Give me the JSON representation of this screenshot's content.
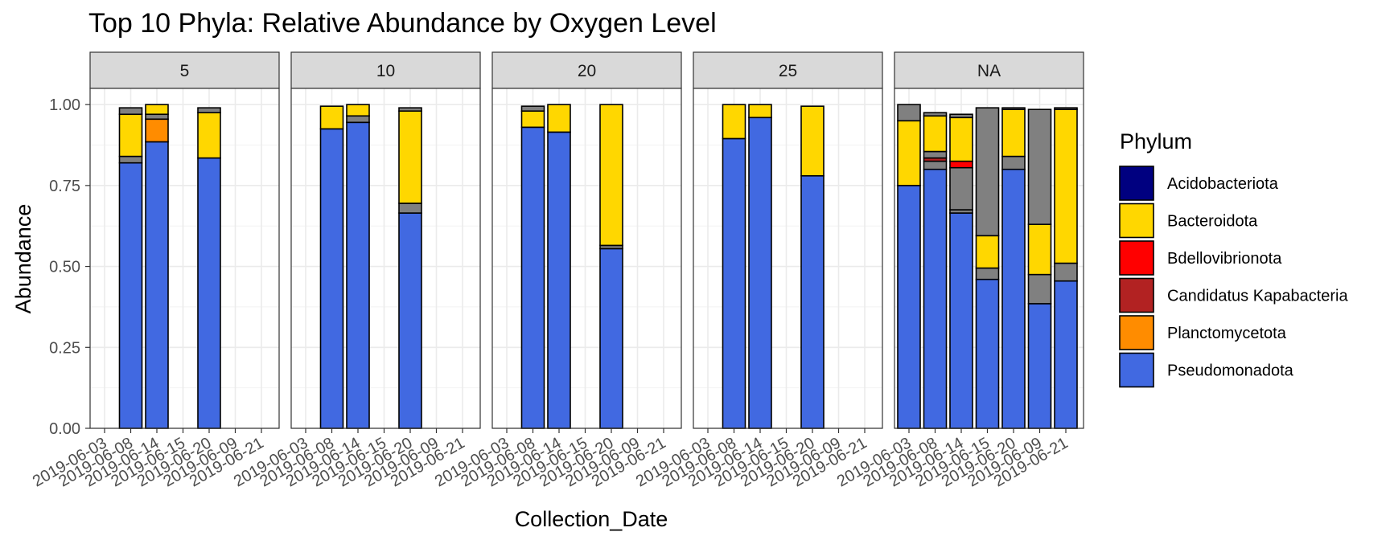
{
  "chart_data": {
    "type": "bar",
    "subtype": "stacked, faceted",
    "title": "Top 10 Phyla: Relative Abundance by Oxygen Level",
    "xlabel": "Collection_Date",
    "ylabel": "Abundance",
    "ylim": [
      0,
      1.05
    ],
    "y_ticks": [
      "0.00",
      "0.25",
      "0.50",
      "0.75",
      "1.00"
    ],
    "y_tick_values": [
      0,
      0.25,
      0.5,
      0.75,
      1.0
    ],
    "x_ticks": [
      "2019-06-03",
      "2019-06-08",
      "2019-06-14",
      "2019-06-15",
      "2019-06-20",
      "2019-06-09",
      "2019-06-21"
    ],
    "grid": true,
    "legend_position": "right",
    "legend_title": "Phylum",
    "legend": [
      {
        "name": "Acidobacteriota",
        "color": "#000080"
      },
      {
        "name": "Bacteroidota",
        "color": "#FFD700"
      },
      {
        "name": "Bdellovibrionota",
        "color": "#FF0000"
      },
      {
        "name": "Candidatus Kapabacteria",
        "color": "#B22222"
      },
      {
        "name": "Planctomycetota",
        "color": "#FF8C00"
      },
      {
        "name": "Pseudomonadota",
        "color": "#4169E1"
      }
    ],
    "other_color": "#808080",
    "panels": [
      {
        "label": "5",
        "bars": [
          {
            "x": "2019-06-08",
            "stack": [
              {
                "phylum": "Pseudomonadota",
                "value": 0.82
              },
              {
                "phylum": "Other",
                "value": 0.02
              },
              {
                "phylum": "Bacteroidota",
                "value": 0.13
              },
              {
                "phylum": "Other",
                "value": 0.02
              }
            ]
          },
          {
            "x": "2019-06-14",
            "stack": [
              {
                "phylum": "Pseudomonadota",
                "value": 0.885
              },
              {
                "phylum": "Planctomycetota",
                "value": 0.07
              },
              {
                "phylum": "Other",
                "value": 0.015
              },
              {
                "phylum": "Bacteroidota",
                "value": 0.03
              }
            ]
          },
          {
            "x": "2019-06-20",
            "stack": [
              {
                "phylum": "Pseudomonadota",
                "value": 0.835
              },
              {
                "phylum": "Bacteroidota",
                "value": 0.14
              },
              {
                "phylum": "Other",
                "value": 0.015
              }
            ]
          }
        ]
      },
      {
        "label": "10",
        "bars": [
          {
            "x": "2019-06-08",
            "stack": [
              {
                "phylum": "Pseudomonadota",
                "value": 0.925
              },
              {
                "phylum": "Bacteroidota",
                "value": 0.07
              }
            ]
          },
          {
            "x": "2019-06-14",
            "stack": [
              {
                "phylum": "Pseudomonadota",
                "value": 0.945
              },
              {
                "phylum": "Other",
                "value": 0.02
              },
              {
                "phylum": "Bacteroidota",
                "value": 0.035
              }
            ]
          },
          {
            "x": "2019-06-20",
            "stack": [
              {
                "phylum": "Pseudomonadota",
                "value": 0.665
              },
              {
                "phylum": "Other",
                "value": 0.03
              },
              {
                "phylum": "Bacteroidota",
                "value": 0.285
              },
              {
                "phylum": "Other",
                "value": 0.01
              }
            ]
          }
        ]
      },
      {
        "label": "20",
        "bars": [
          {
            "x": "2019-06-08",
            "stack": [
              {
                "phylum": "Pseudomonadota",
                "value": 0.93
              },
              {
                "phylum": "Bacteroidota",
                "value": 0.05
              },
              {
                "phylum": "Other",
                "value": 0.015
              }
            ]
          },
          {
            "x": "2019-06-14",
            "stack": [
              {
                "phylum": "Pseudomonadota",
                "value": 0.915
              },
              {
                "phylum": "Bacteroidota",
                "value": 0.085
              }
            ]
          },
          {
            "x": "2019-06-20",
            "stack": [
              {
                "phylum": "Pseudomonadota",
                "value": 0.555
              },
              {
                "phylum": "Other",
                "value": 0.01
              },
              {
                "phylum": "Bacteroidota",
                "value": 0.435
              }
            ]
          }
        ]
      },
      {
        "label": "25",
        "bars": [
          {
            "x": "2019-06-08",
            "stack": [
              {
                "phylum": "Pseudomonadota",
                "value": 0.895
              },
              {
                "phylum": "Bacteroidota",
                "value": 0.105
              }
            ]
          },
          {
            "x": "2019-06-14",
            "stack": [
              {
                "phylum": "Pseudomonadota",
                "value": 0.96
              },
              {
                "phylum": "Bacteroidota",
                "value": 0.04
              }
            ]
          },
          {
            "x": "2019-06-20",
            "stack": [
              {
                "phylum": "Pseudomonadota",
                "value": 0.78
              },
              {
                "phylum": "Bacteroidota",
                "value": 0.215
              }
            ]
          }
        ]
      },
      {
        "label": "NA",
        "bars": [
          {
            "x": "2019-06-03",
            "stack": [
              {
                "phylum": "Pseudomonadota",
                "value": 0.75
              },
              {
                "phylum": "Bacteroidota",
                "value": 0.2
              },
              {
                "phylum": "Other",
                "value": 0.05
              }
            ]
          },
          {
            "x": "2019-06-08",
            "stack": [
              {
                "phylum": "Pseudomonadota",
                "value": 0.8
              },
              {
                "phylum": "Other",
                "value": 0.025
              },
              {
                "phylum": "Candidatus Kapabacteria",
                "value": 0.01
              },
              {
                "phylum": "Other",
                "value": 0.02
              },
              {
                "phylum": "Bacteroidota",
                "value": 0.11
              },
              {
                "phylum": "Other",
                "value": 0.01
              }
            ]
          },
          {
            "x": "2019-06-14",
            "stack": [
              {
                "phylum": "Pseudomonadota",
                "value": 0.665
              },
              {
                "phylum": "Other",
                "value": 0.01
              },
              {
                "phylum": "Other",
                "value": 0.13
              },
              {
                "phylum": "Bdellovibrionota",
                "value": 0.02
              },
              {
                "phylum": "Bacteroidota",
                "value": 0.135
              },
              {
                "phylum": "Other",
                "value": 0.01
              }
            ]
          },
          {
            "x": "2019-06-15",
            "stack": [
              {
                "phylum": "Pseudomonadota",
                "value": 0.46
              },
              {
                "phylum": "Other",
                "value": 0.035
              },
              {
                "phylum": "Bacteroidota",
                "value": 0.1
              },
              {
                "phylum": "Other",
                "value": 0.395
              }
            ]
          },
          {
            "x": "2019-06-20",
            "stack": [
              {
                "phylum": "Pseudomonadota",
                "value": 0.8
              },
              {
                "phylum": "Other",
                "value": 0.04
              },
              {
                "phylum": "Bacteroidota",
                "value": 0.145
              },
              {
                "phylum": "Other",
                "value": 0.005
              }
            ]
          },
          {
            "x": "2019-06-09",
            "stack": [
              {
                "phylum": "Pseudomonadota",
                "value": 0.385
              },
              {
                "phylum": "Other",
                "value": 0.09
              },
              {
                "phylum": "Bacteroidota",
                "value": 0.155
              },
              {
                "phylum": "Other",
                "value": 0.355
              }
            ]
          },
          {
            "x": "2019-06-21",
            "stack": [
              {
                "phylum": "Pseudomonadota",
                "value": 0.455
              },
              {
                "phylum": "Other",
                "value": 0.055
              },
              {
                "phylum": "Bacteroidota",
                "value": 0.475
              },
              {
                "phylum": "Other",
                "value": 0.005
              }
            ]
          }
        ]
      }
    ]
  }
}
